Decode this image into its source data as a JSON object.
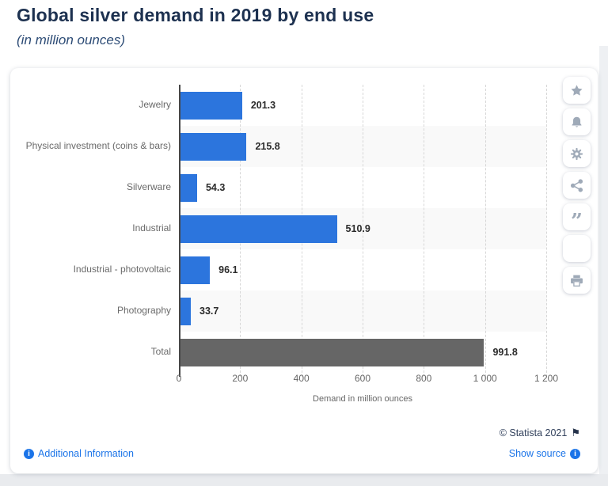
{
  "header": {
    "title": "Global silver demand in 2019 by end use",
    "subtitle": "(in million ounces)"
  },
  "chart_data": {
    "type": "bar",
    "orientation": "horizontal",
    "title": "Global silver demand in 2019 by end use",
    "subtitle": "(in million ounces)",
    "categories": [
      "Jewelry",
      "Physical investment (coins & bars)",
      "Silverware",
      "Industrial",
      "Industrial - photovoltaic",
      "Photography",
      "Total"
    ],
    "values": [
      201.3,
      215.8,
      54.3,
      510.9,
      96.1,
      33.7,
      991.8
    ],
    "value_labels": [
      "201.3",
      "215.8",
      "54.3",
      "510.9",
      "96.1",
      "33.7",
      "991.8"
    ],
    "xlabel": "Demand in million ounces",
    "xlim": [
      0,
      1200
    ],
    "xticks": [
      0,
      200,
      400,
      600,
      800,
      1000,
      1200
    ],
    "xtick_labels": [
      "0",
      "200",
      "400",
      "600",
      "800",
      "1 000",
      "1 200"
    ],
    "grid": "vertical-dashed",
    "legend": false,
    "bar_color": "#2c75dd",
    "total_bar_color": "#666666",
    "row_band_color": "#f9f9f9"
  },
  "toolbar": {
    "icons": [
      {
        "name": "favorite",
        "icon": "star-icon"
      },
      {
        "name": "notifications",
        "icon": "bell-icon"
      },
      {
        "name": "settings",
        "icon": "gear-icon"
      },
      {
        "name": "share",
        "icon": "share-icon"
      },
      {
        "name": "cite",
        "icon": "quote-icon"
      },
      {
        "name": "language-spanish",
        "icon": "spain-flag-icon"
      },
      {
        "name": "print",
        "icon": "printer-icon"
      }
    ]
  },
  "footer": {
    "additional_information": "Additional Information",
    "copyright": "© Statista 2021",
    "flag_glyph": "⚑",
    "show_source": "Show source"
  },
  "colors": {
    "accent_blue": "#2c75dd",
    "total_gray": "#666666",
    "link_blue": "#1b74e8",
    "title_navy": "#1d3150",
    "row_band": "#f9f9f9"
  }
}
